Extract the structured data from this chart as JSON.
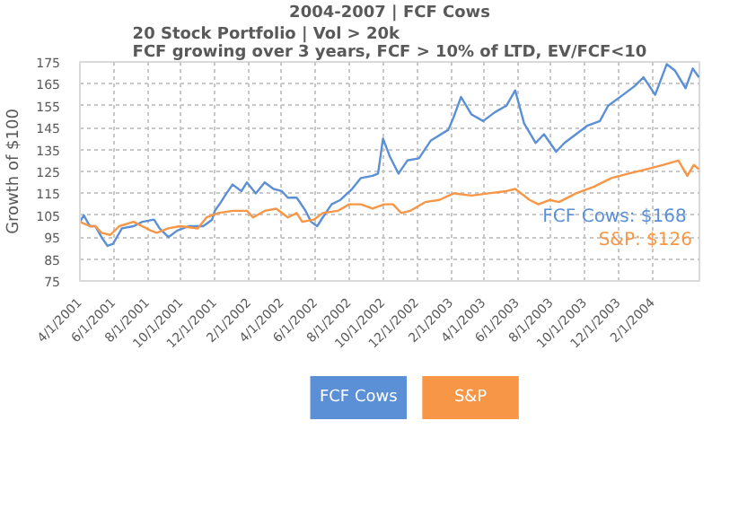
{
  "chart_data": {
    "type": "line",
    "title": "2004-2007 | FCF Cows",
    "subtitle": "20 Stock Portfolio | Vol > 20k\nFCF growing over 3 years, FCF > 10% of LTD, EV/FCF<10",
    "ylabel": "Growth of $100",
    "series": [
      {
        "name": "FCF Cows",
        "color": "#5b8fd6",
        "x": [
          "2001-04-01",
          "2001-04-08",
          "2001-04-19",
          "2001-04-29",
          "2001-05-10",
          "2001-05-21",
          "2001-05-31",
          "2001-06-16",
          "2001-07-07",
          "2001-07-23",
          "2001-08-13",
          "2001-08-23",
          "2001-09-08",
          "2001-09-24",
          "2001-10-15",
          "2001-11-10",
          "2001-11-26",
          "2001-12-01",
          "2001-12-12",
          "2001-12-22",
          "2002-01-02",
          "2002-01-18",
          "2002-01-28",
          "2002-02-13",
          "2002-03-01",
          "2002-03-17",
          "2002-04-01",
          "2002-04-12",
          "2002-04-28",
          "2002-05-14",
          "2002-05-24",
          "2002-06-04",
          "2002-06-14",
          "2002-06-30",
          "2002-07-16",
          "2002-08-06",
          "2002-08-22",
          "2002-09-12",
          "2002-09-22",
          "2002-10-01",
          "2002-10-13",
          "2002-10-29",
          "2002-11-14",
          "2002-12-05",
          "2002-12-26",
          "2003-01-27",
          "2003-02-06",
          "2003-02-19",
          "2003-03-10",
          "2003-03-31",
          "2003-04-21",
          "2003-05-12",
          "2003-05-28",
          "2003-06-13",
          "2003-07-04",
          "2003-07-19",
          "2003-08-10",
          "2003-08-25",
          "2003-09-15",
          "2003-10-06",
          "2003-10-28",
          "2003-11-12",
          "2003-12-09",
          "2003-12-30",
          "2004-01-15",
          "2004-02-05",
          "2004-02-26",
          "2004-03-12",
          "2004-03-31",
          "2004-04-13",
          "2004-04-24"
        ],
        "values": [
          102,
          105,
          100,
          100,
          95,
          91,
          92,
          99,
          100,
          102,
          103,
          99,
          95,
          98,
          100,
          100,
          103,
          107,
          111,
          115,
          119,
          116,
          120,
          115,
          120,
          117,
          116,
          113,
          113,
          107,
          102,
          100,
          104,
          110,
          112,
          117,
          122,
          123,
          124,
          140,
          132,
          124,
          130,
          131,
          139,
          144,
          150,
          159,
          151,
          148,
          152,
          155,
          162,
          147,
          138,
          142,
          134,
          138,
          142,
          146,
          148,
          155,
          160,
          164,
          168,
          160,
          174,
          171,
          163,
          172,
          168
        ]
      },
      {
        "name": "S&P",
        "color": "#f79646",
        "x": [
          "2001-04-01",
          "2001-04-19",
          "2001-04-29",
          "2001-05-10",
          "2001-05-26",
          "2001-06-11",
          "2001-07-07",
          "2001-08-07",
          "2001-08-18",
          "2001-09-08",
          "2001-09-29",
          "2001-10-31",
          "2001-11-16",
          "2001-12-07",
          "2002-01-02",
          "2002-01-28",
          "2002-02-08",
          "2002-03-01",
          "2002-03-22",
          "2002-04-12",
          "2002-04-28",
          "2002-05-08",
          "2002-05-29",
          "2002-06-14",
          "2002-07-11",
          "2002-08-01",
          "2002-08-22",
          "2002-09-12",
          "2002-10-03",
          "2002-10-19",
          "2002-11-03",
          "2002-11-19",
          "2002-12-16",
          "2003-01-11",
          "2003-02-06",
          "2003-03-10",
          "2003-04-10",
          "2003-05-12",
          "2003-05-28",
          "2003-06-23",
          "2003-07-09",
          "2003-07-30",
          "2003-08-15",
          "2003-09-15",
          "2003-10-17",
          "2003-11-18",
          "2003-12-19",
          "2004-01-20",
          "2004-02-20",
          "2004-03-18",
          "2004-04-03",
          "2004-04-15",
          "2004-04-24"
        ],
        "values": [
          102,
          100,
          100,
          97,
          96,
          100,
          102,
          98,
          97,
          99,
          100,
          99,
          104,
          106,
          107,
          107,
          104,
          107,
          108,
          104,
          106,
          102,
          103,
          106,
          107,
          110,
          110,
          108,
          110,
          110,
          106,
          107,
          111,
          112,
          115,
          114,
          115,
          116,
          117,
          112,
          110,
          112,
          111,
          115,
          118,
          122,
          124,
          126,
          128,
          130,
          123,
          128,
          126
        ]
      }
    ],
    "xlim": [
      "2001-04-01",
      "2004-04-25"
    ],
    "xticks": [
      {
        "value": "2001-04-01",
        "label": "4/1/2001"
      },
      {
        "value": "2001-06-01",
        "label": "6/1/2001"
      },
      {
        "value": "2001-08-01",
        "label": "8/1/2001"
      },
      {
        "value": "2001-10-01",
        "label": "10/1/2001"
      },
      {
        "value": "2001-12-01",
        "label": "12/1/2001"
      },
      {
        "value": "2002-02-01",
        "label": "2/1/2002"
      },
      {
        "value": "2002-04-01",
        "label": "4/1/2002"
      },
      {
        "value": "2002-06-01",
        "label": "6/1/2002"
      },
      {
        "value": "2002-08-01",
        "label": "8/1/2002"
      },
      {
        "value": "2002-10-01",
        "label": "10/1/2002"
      },
      {
        "value": "2002-12-01",
        "label": "12/1/2002"
      },
      {
        "value": "2003-02-01",
        "label": "2/1/2003"
      },
      {
        "value": "2003-04-01",
        "label": "4/1/2003"
      },
      {
        "value": "2003-06-01",
        "label": "6/1/2003"
      },
      {
        "value": "2003-08-01",
        "label": "8/1/2003"
      },
      {
        "value": "2003-10-01",
        "label": "10/1/2003"
      },
      {
        "value": "2003-12-01",
        "label": "12/1/2003"
      },
      {
        "value": "2004-02-01",
        "label": "2/1/2004"
      }
    ],
    "ylim": [
      75,
      175
    ],
    "yticks": [
      75,
      85,
      95,
      105,
      115,
      125,
      135,
      145,
      155,
      165,
      175
    ],
    "grid": true,
    "legend": "bottom",
    "line_style": "solid",
    "marker": "none",
    "annotations": [
      "FCF Cows:  $168",
      "S&P: $126"
    ]
  }
}
